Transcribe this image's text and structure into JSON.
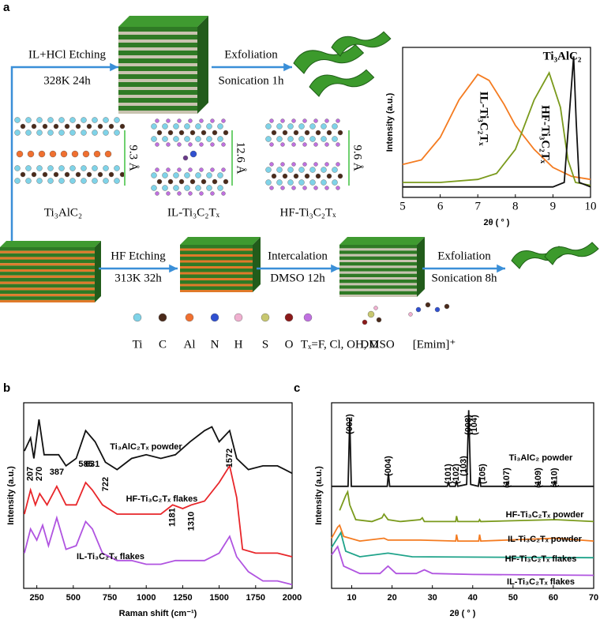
{
  "panel_labels": [
    "a",
    "b",
    "c"
  ],
  "schematic": {
    "il_etching": "IL+HCl Etching",
    "il_conditions": "328K 24h",
    "exfoliation_top": "Exfoliation",
    "sonication_top": "Sonication 1h",
    "structures": [
      "Ti₃AlC₂",
      "IL-Ti₃C₂Tₓ",
      "HF-Ti₃C₂Tₓ"
    ],
    "spacings": [
      "9.3 Å",
      "12.6 Å",
      "9.6 Å"
    ],
    "hf_etching": "HF Etching",
    "hf_conditions": "313K 32h",
    "intercalation": "Intercalation",
    "intercalation_conditions": "DMSO 12h",
    "exfoliation_bottom": "Exfoliation",
    "sonication_bottom": "Sonication 8h",
    "legend": [
      "Ti",
      "C",
      "Al",
      "N",
      "H",
      "S",
      "O",
      "Tₓ=F, Cl, OH, O"
    ],
    "molecules": [
      "DMSO",
      "[Emim]⁺"
    ]
  },
  "chart_data": [
    {
      "type": "line",
      "xlabel": "2θ ( ° )",
      "ylabel": "Intensity (a.u.)",
      "xlim": [
        5,
        10
      ],
      "ylim": [
        0,
        1
      ],
      "xticks": [
        5,
        6,
        7,
        8,
        9,
        10
      ],
      "series": [
        {
          "name": "IL-Ti₃C₂Tₓ",
          "color": "#f47b20",
          "x": [
            5,
            5.5,
            6,
            6.5,
            7,
            7.3,
            7.7,
            8,
            8.5,
            9,
            9.5,
            10
          ],
          "values": [
            0.22,
            0.25,
            0.4,
            0.65,
            0.82,
            0.78,
            0.62,
            0.48,
            0.32,
            0.2,
            0.14,
            0.12
          ]
        },
        {
          "name": "HF-Ti₃C₂Tₓ",
          "color": "#7a9a1c",
          "x": [
            5,
            6,
            7,
            7.5,
            8,
            8.5,
            8.9,
            9.2,
            9.4,
            9.6,
            10
          ],
          "values": [
            0.1,
            0.1,
            0.12,
            0.16,
            0.32,
            0.65,
            0.83,
            0.6,
            0.25,
            0.1,
            0.08
          ]
        },
        {
          "name": "Ti₃AlC₂",
          "color": "#111111",
          "x": [
            5,
            9,
            9.3,
            9.45,
            9.55,
            9.62,
            9.7,
            10
          ],
          "values": [
            0.07,
            0.07,
            0.1,
            0.6,
            0.94,
            0.5,
            0.1,
            0.07
          ]
        }
      ]
    },
    {
      "type": "line",
      "xlabel": "Raman shift (cm⁻¹)",
      "ylabel": "Intensity (a.u.)",
      "xlim": [
        160,
        2000
      ],
      "ylim": [
        0,
        1
      ],
      "xticks": [
        250,
        500,
        750,
        1000,
        1250,
        1500,
        1750,
        2000
      ],
      "peak_labels": [
        207,
        270,
        387,
        585,
        631,
        722,
        1181,
        1310,
        1572
      ],
      "series": [
        {
          "name": "Ti₃AlC₂Tₓ powder",
          "color": "#111111",
          "x": [
            165,
            207,
            230,
            265,
            300,
            400,
            450,
            520,
            585,
            650,
            720,
            800,
            900,
            1000,
            1100,
            1200,
            1300,
            1400,
            1450,
            1500,
            1572,
            1620,
            1700,
            1800,
            1900,
            1950,
            2000
          ],
          "values": [
            0.74,
            0.81,
            0.7,
            0.91,
            0.72,
            0.72,
            0.66,
            0.7,
            0.85,
            0.79,
            0.68,
            0.64,
            0.7,
            0.72,
            0.7,
            0.72,
            0.79,
            0.85,
            0.87,
            0.79,
            0.85,
            0.7,
            0.64,
            0.66,
            0.66,
            0.64,
            0.62
          ]
        },
        {
          "name": "HF-Ti₃C₂Tₓ flakes",
          "color": "#e8262a",
          "x": [
            165,
            207,
            240,
            270,
            320,
            387,
            450,
            520,
            585,
            631,
            700,
            800,
            900,
            1000,
            1100,
            1181,
            1250,
            1310,
            1400,
            1500,
            1572,
            1620,
            1660,
            1750,
            1900,
            2000
          ],
          "values": [
            0.4,
            0.53,
            0.45,
            0.51,
            0.45,
            0.55,
            0.45,
            0.45,
            0.57,
            0.53,
            0.45,
            0.4,
            0.4,
            0.4,
            0.4,
            0.45,
            0.43,
            0.45,
            0.47,
            0.57,
            0.66,
            0.49,
            0.21,
            0.19,
            0.19,
            0.17
          ]
        },
        {
          "name": "IL-Ti₃C₂Tₓ flakes",
          "color": "#b054e0",
          "x": [
            165,
            207,
            250,
            290,
            330,
            387,
            450,
            520,
            585,
            631,
            700,
            800,
            900,
            1000,
            1100,
            1200,
            1300,
            1400,
            1500,
            1572,
            1620,
            1700,
            1800,
            1900,
            2000
          ],
          "values": [
            0.19,
            0.32,
            0.26,
            0.34,
            0.23,
            0.38,
            0.21,
            0.23,
            0.36,
            0.32,
            0.19,
            0.15,
            0.15,
            0.13,
            0.13,
            0.15,
            0.15,
            0.15,
            0.19,
            0.28,
            0.17,
            0.09,
            0.04,
            0.04,
            0.02
          ]
        }
      ]
    },
    {
      "type": "line",
      "xlabel": "2θ ( ° )",
      "ylabel": "Intensity (a.u.)",
      "xlim": [
        5,
        70
      ],
      "ylim": [
        0,
        1
      ],
      "xticks": [
        10,
        20,
        30,
        40,
        50,
        60,
        70
      ],
      "peak_labels": [
        {
          "value": 9.5,
          "label": "(002)"
        },
        {
          "value": 19.1,
          "label": "(004)"
        },
        {
          "value": 34,
          "label": "(101)"
        },
        {
          "value": 36,
          "label": "(102)"
        },
        {
          "value": 37.8,
          "label": "(103)"
        },
        {
          "value": 39,
          "label": "(008)"
        },
        {
          "value": 40.5,
          "label": "(104)"
        },
        {
          "value": 42.5,
          "label": "(105)"
        },
        {
          "value": 48.5,
          "label": "(107)"
        },
        {
          "value": 56.3,
          "label": "(109)"
        },
        {
          "value": 60.3,
          "label": "(110)"
        }
      ],
      "series": [
        {
          "name": "Ti₃AlC₂ powder",
          "color": "#111111",
          "x": [
            5,
            9.1,
            9.5,
            9.9,
            18.8,
            19.1,
            19.4,
            33.7,
            34,
            34.3,
            35.7,
            36,
            36.3,
            38.5,
            39,
            39.5,
            41.4,
            41.7,
            42,
            48.2,
            48.5,
            48.8,
            56,
            56.3,
            56.6,
            60,
            60.3,
            60.6,
            70
          ],
          "values": [
            0.55,
            0.55,
            0.92,
            0.55,
            0.55,
            0.62,
            0.55,
            0.55,
            0.57,
            0.55,
            0.55,
            0.58,
            0.55,
            0.56,
            0.96,
            0.56,
            0.55,
            0.6,
            0.55,
            0.55,
            0.57,
            0.55,
            0.55,
            0.57,
            0.55,
            0.55,
            0.58,
            0.55,
            0.55
          ]
        },
        {
          "name": "HF-Ti₃C₂Tₓ powder",
          "color": "#7a9a1c",
          "x": [
            7,
            8.5,
            9,
            9.5,
            11,
            15,
            17.5,
            18,
            19,
            22,
            27,
            27.5,
            28,
            35.8,
            36,
            36.3,
            41.5,
            41.7,
            42,
            60.5,
            70
          ],
          "values": [
            0.42,
            0.5,
            0.52,
            0.45,
            0.37,
            0.36,
            0.38,
            0.4,
            0.37,
            0.36,
            0.37,
            0.38,
            0.36,
            0.36,
            0.39,
            0.36,
            0.36,
            0.37,
            0.36,
            0.37,
            0.36
          ]
        },
        {
          "name": "IL-Ti₃C₂Tₓ powder",
          "color": "#f47b20",
          "x": [
            5,
            6.5,
            7,
            8,
            12,
            18,
            19,
            27,
            35.8,
            36,
            36.3,
            41.5,
            41.7,
            42,
            60.5,
            70
          ],
          "values": [
            0.27,
            0.33,
            0.34,
            0.28,
            0.255,
            0.27,
            0.26,
            0.26,
            0.255,
            0.29,
            0.255,
            0.255,
            0.29,
            0.255,
            0.27,
            0.255
          ]
        },
        {
          "name": "HF-Ti₃C₂Tₓ flakes",
          "color": "#1fa38a",
          "x": [
            5,
            7.3,
            8.5,
            12,
            19,
            25,
            70
          ],
          "values": [
            0.22,
            0.3,
            0.2,
            0.17,
            0.19,
            0.17,
            0.165
          ]
        },
        {
          "name": "IL-Ti₃C₂Tₓ flakes",
          "color": "#b054e0",
          "x": [
            5,
            6.5,
            8,
            12,
            17,
            19,
            21,
            26,
            28,
            30,
            40,
            70
          ],
          "values": [
            0.18,
            0.225,
            0.12,
            0.08,
            0.08,
            0.12,
            0.08,
            0.08,
            0.1,
            0.08,
            0.075,
            0.07
          ]
        }
      ]
    }
  ]
}
